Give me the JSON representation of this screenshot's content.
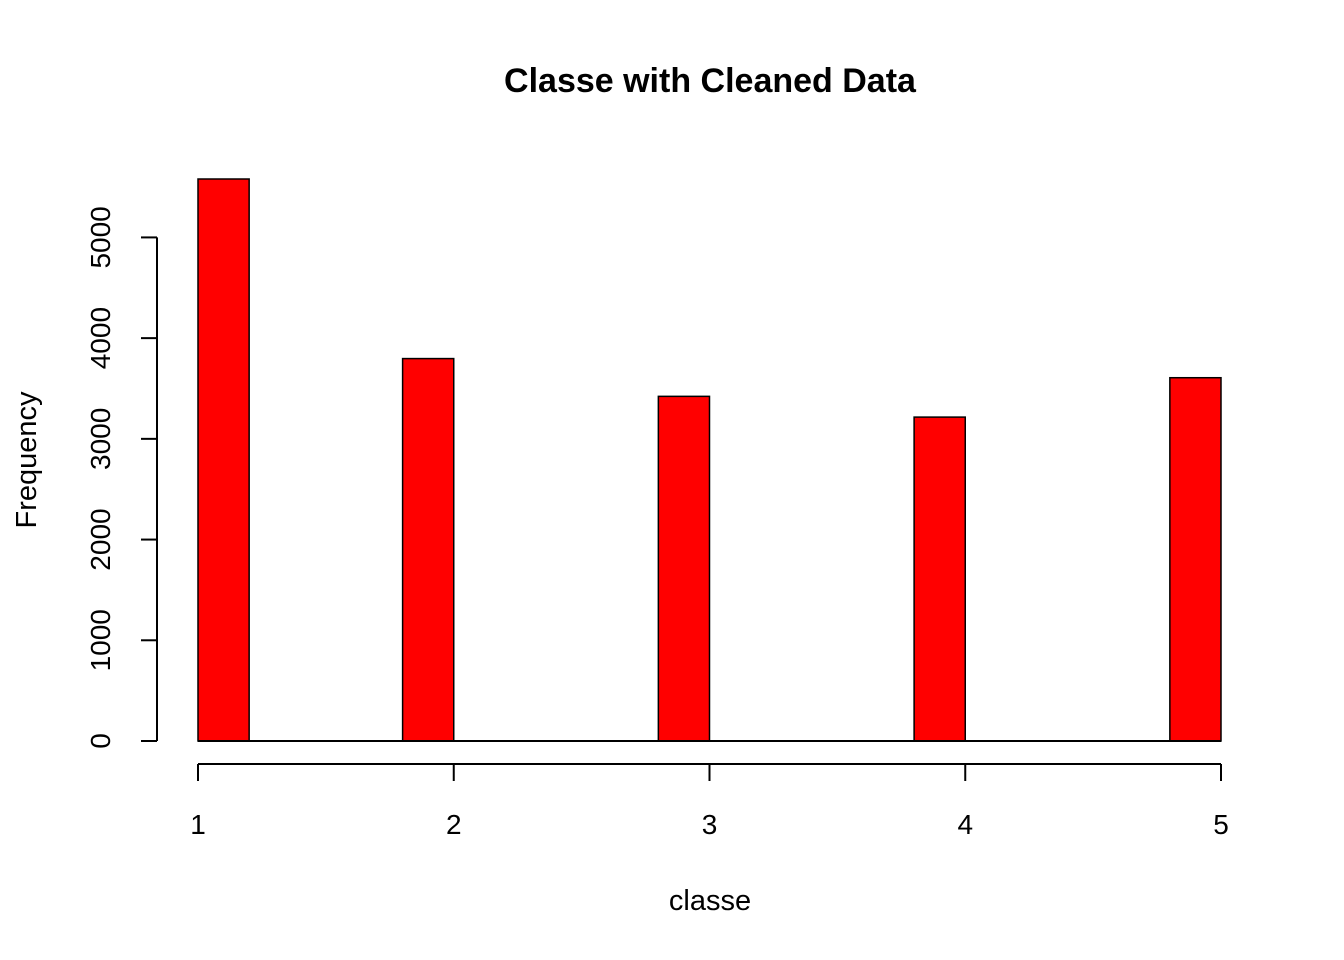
{
  "chart_data": {
    "type": "bar",
    "title": "Classe with Cleaned Data",
    "xlabel": "classe",
    "ylabel": "Frequency",
    "bins": [
      {
        "x_start": 1.0,
        "x_end": 1.2,
        "value": 5580
      },
      {
        "x_start": 1.8,
        "x_end": 2.0,
        "value": 3797
      },
      {
        "x_start": 2.8,
        "x_end": 3.0,
        "value": 3422
      },
      {
        "x_start": 3.8,
        "x_end": 4.0,
        "value": 3216
      },
      {
        "x_start": 4.8,
        "x_end": 5.0,
        "value": 3607
      }
    ],
    "x_ticks": [
      "1",
      "2",
      "3",
      "4",
      "5"
    ],
    "y_ticks": [
      "0",
      "1000",
      "2000",
      "3000",
      "4000",
      "5000"
    ],
    "xlim": [
      1,
      5
    ],
    "ylim": [
      0,
      5580
    ],
    "bar_color": "#ff0000",
    "grid": false
  }
}
